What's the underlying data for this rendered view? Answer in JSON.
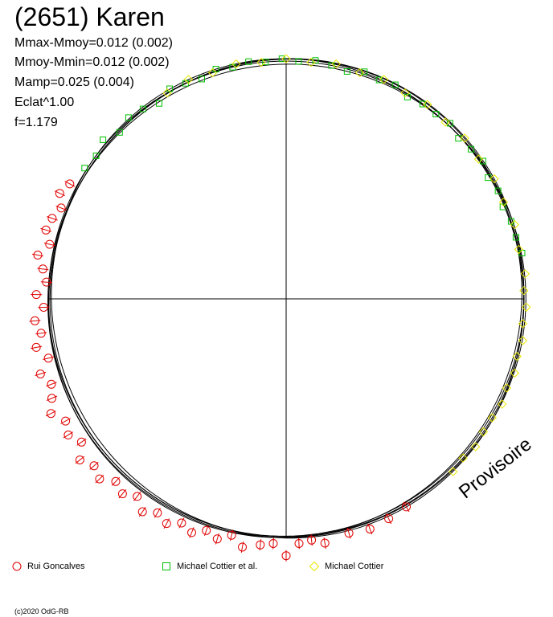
{
  "header": {
    "title": "(2651) Karen",
    "lines": [
      "Mmax-Mmoy=0.012 (0.002)",
      "Mmoy-Mmin=0.012 (0.002)",
      "Mamp=0.025 (0.004)",
      "Eclat^1.00",
      "f=1.179"
    ]
  },
  "watermark": "Provisoire",
  "copyright": "(c)2020 OdG-RB",
  "legend": [
    {
      "label": "Rui Goncalves",
      "marker": "circle",
      "color": "#e00000"
    },
    {
      "label": "Michael Cottier et al.",
      "marker": "square",
      "color": "#00c000"
    },
    {
      "label": "Michael Cottier",
      "marker": "diamond",
      "color": "#e8e800"
    }
  ],
  "chart_data": {
    "type": "scatter",
    "subtype": "polar-lightcurve",
    "title": "(2651) Karen",
    "angle_unit": "degrees",
    "angle_origin": "top, clockwise",
    "radius_scale": "relative to mean brightness (1.0 = reference circle)",
    "axes": "crosshair through center",
    "series": [
      {
        "name": "Rui Goncalves",
        "marker": "circle",
        "color": "#e00000",
        "points": [
          [
            183,
            1.03
          ],
          [
            186,
            1.04
          ],
          [
            190,
            1.06
          ],
          [
            193,
            1.02
          ],
          [
            196,
            1.05
          ],
          [
            199,
            1.03
          ],
          [
            202,
            1.06
          ],
          [
            205,
            1.04
          ],
          [
            208,
            1.07
          ],
          [
            211,
            1.05
          ],
          [
            214,
            1.08
          ],
          [
            217,
            1.04
          ],
          [
            220,
            1.07
          ],
          [
            223,
            1.05
          ],
          [
            226,
            1.09
          ],
          [
            229,
            1.07
          ],
          [
            232,
            1.1
          ],
          [
            235,
            1.05
          ],
          [
            238,
            1.08
          ],
          [
            241,
            1.06
          ],
          [
            244,
            1.1
          ],
          [
            247,
            1.07
          ],
          [
            250,
            1.05
          ],
          [
            253,
            1.08
          ],
          [
            256,
            1.03
          ],
          [
            259,
            1.07
          ],
          [
            262,
            1.04
          ],
          [
            265,
            1.06
          ],
          [
            268,
            1.02
          ],
          [
            271,
            1.05
          ],
          [
            274,
            1.01
          ],
          [
            277,
            1.03
          ],
          [
            280,
            1.06
          ],
          [
            283,
            1.02
          ],
          [
            286,
            1.05
          ],
          [
            289,
            1.04
          ],
          [
            292,
            1.02
          ],
          [
            295,
            1.05
          ],
          [
            298,
            1.03
          ],
          [
            171,
            1.04
          ],
          [
            174,
            1.02
          ],
          [
            177,
            1.03
          ],
          [
            180,
            1.08
          ],
          [
            165,
            1.02
          ],
          [
            160,
            1.03
          ],
          [
            155,
            1.02
          ],
          [
            150,
            1.01
          ]
        ]
      },
      {
        "name": "Michael Cottier et al.",
        "marker": "square",
        "color": "#00c000",
        "points": [
          [
            303,
            1.01
          ],
          [
            307,
            1.0
          ],
          [
            311,
            1.02
          ],
          [
            315,
            0.99
          ],
          [
            319,
            1.01
          ],
          [
            323,
            1.0
          ],
          [
            327,
            0.98
          ],
          [
            331,
            1.01
          ],
          [
            335,
            1.0
          ],
          [
            339,
            0.99
          ],
          [
            343,
            1.01
          ],
          [
            347,
            1.0
          ],
          [
            351,
            1.01
          ],
          [
            355,
            1.0
          ],
          [
            359,
            1.01
          ],
          [
            3,
            1.0
          ],
          [
            7,
            1.01
          ],
          [
            11,
            1.0
          ],
          [
            15,
            0.99
          ],
          [
            19,
            1.01
          ],
          [
            23,
            1.0
          ],
          [
            27,
            1.01
          ],
          [
            31,
            0.99
          ],
          [
            35,
            1.0
          ],
          [
            39,
            1.0
          ],
          [
            43,
            1.01
          ],
          [
            47,
            0.99
          ],
          [
            51,
            1.0
          ],
          [
            55,
            1.01
          ],
          [
            59,
            0.99
          ],
          [
            63,
            1.0
          ],
          [
            67,
            0.99
          ],
          [
            71,
            1.0
          ],
          [
            75,
            1.0
          ],
          [
            79,
            1.01
          ]
        ]
      },
      {
        "name": "Michael Cottier",
        "marker": "diamond",
        "color": "#e8e800",
        "points": [
          [
            330,
            1.0
          ],
          [
            336,
            1.01
          ],
          [
            342,
            1.0
          ],
          [
            348,
            1.01
          ],
          [
            354,
            1.0
          ],
          [
            0,
            1.01
          ],
          [
            6,
            1.0
          ],
          [
            12,
            1.01
          ],
          [
            18,
            1.0
          ],
          [
            24,
            1.01
          ],
          [
            30,
            1.0
          ],
          [
            36,
            1.01
          ],
          [
            42,
            1.0
          ],
          [
            48,
            1.01
          ],
          [
            54,
            1.0
          ],
          [
            60,
            1.01
          ],
          [
            66,
            1.0
          ],
          [
            72,
            1.01
          ],
          [
            78,
            1.0
          ],
          [
            84,
            1.01
          ],
          [
            88,
            1.0
          ],
          [
            92,
            1.01
          ],
          [
            96,
            1.0
          ],
          [
            100,
            1.01
          ],
          [
            104,
            1.0
          ],
          [
            108,
            1.01
          ],
          [
            112,
            1.0
          ],
          [
            116,
            1.01
          ],
          [
            120,
            1.0
          ],
          [
            124,
            1.0
          ],
          [
            128,
            1.01
          ],
          [
            132,
            1.0
          ],
          [
            136,
            1.01
          ]
        ]
      }
    ]
  }
}
